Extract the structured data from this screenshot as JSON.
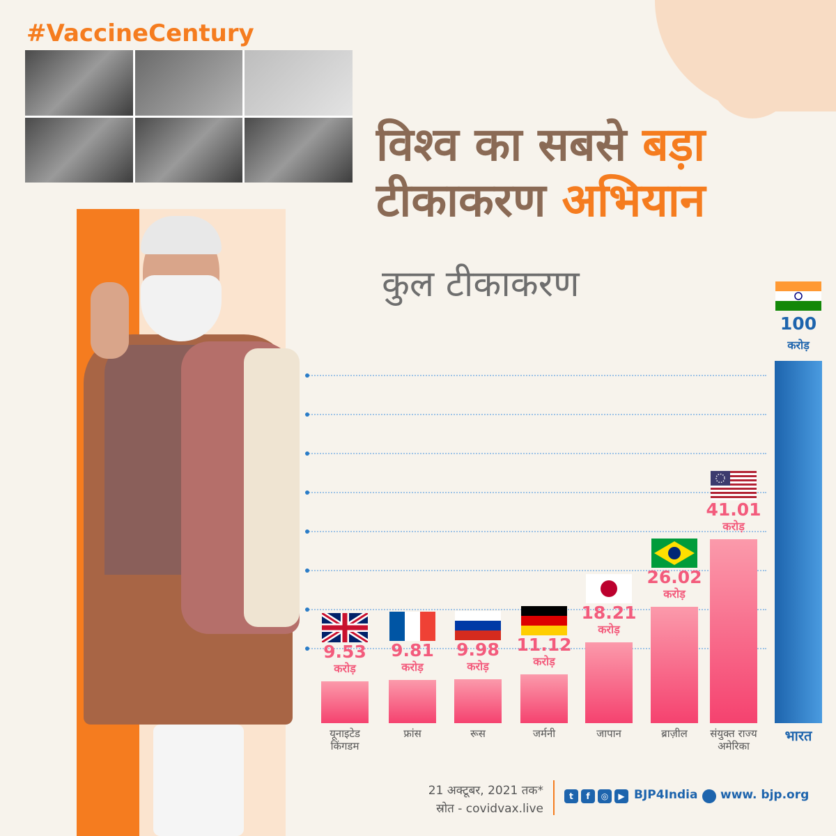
{
  "hashtag": "#VaccineCentury",
  "title": {
    "line1_a": "विश्व का सबसे ",
    "line1_b": "बड़ा",
    "line2_a": "टीकाकरण ",
    "line2_b": "अभियान"
  },
  "subtitle": "कुल टीकाकरण",
  "colors": {
    "accent": "#f57c1f",
    "bar": "#f5426f",
    "india_bar": "#1d64ad",
    "title_brown": "#8a6a55"
  },
  "chart_data": {
    "type": "bar",
    "categories": [
      "यूनाइटेड किंगडम",
      "फ्रांस",
      "रूस",
      "जर्मनी",
      "जापान",
      "ब्राज़ील",
      "संयुक्त राज्य अमेरिका",
      "भारत"
    ],
    "category_lines": [
      [
        "यूनाइटेड",
        "किंगडम"
      ],
      [
        "फ्रांस"
      ],
      [
        "रूस"
      ],
      [
        "जर्मनी"
      ],
      [
        "जापान"
      ],
      [
        "ब्राज़ील"
      ],
      [
        "संयुक्त राज्य",
        "अमेरिका"
      ],
      [
        "भारत"
      ]
    ],
    "values": [
      9.53,
      9.81,
      9.98,
      11.12,
      18.21,
      26.02,
      41.01,
      100
    ],
    "value_labels": [
      "9.53",
      "9.81",
      "9.98",
      "11.12",
      "18.21",
      "26.02",
      "41.01",
      "100"
    ],
    "unit": "करोड़",
    "flags": [
      "uk-flag-icon",
      "france-flag-icon",
      "russia-flag-icon",
      "germany-flag-icon",
      "japan-flag-icon",
      "brazil-flag-icon",
      "usa-flag-icon",
      "india-flag-icon"
    ],
    "highlight": "भारत",
    "grid": true
  },
  "footer": {
    "date": "21 अक्टूबर, 2021 तक*",
    "source": "स्रोत - covidvax.live",
    "handle": "BJP4India",
    "website": "www. bjp.org",
    "social_icons": [
      "twitter-icon",
      "facebook-icon",
      "instagram-icon",
      "youtube-icon"
    ]
  }
}
